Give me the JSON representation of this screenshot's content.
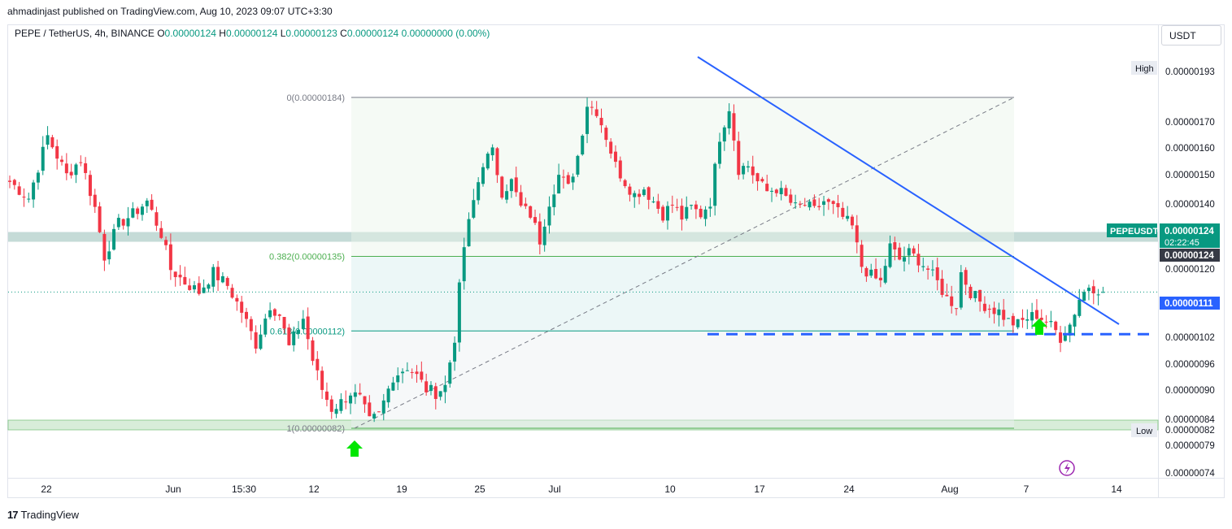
{
  "header": {
    "publisher": "ahmadinjast published on TradingView.com, Aug 10, 2023 09:07 UTC+3:30"
  },
  "legend": {
    "symbol": "PEPE / TetherUS, 4h, BINANCE",
    "o_label": "O",
    "o": "0.00000124",
    "h_label": "H",
    "h": "0.00000124",
    "l_label": "L",
    "l": "0.00000123",
    "c_label": "C",
    "c": "0.00000124",
    "change": "0.00000000 (0.00%)"
  },
  "currency_button": "USDT",
  "footer": {
    "brand": "TradingView",
    "icon": "tradingview-logo-icon"
  },
  "colors": {
    "up": "#089981",
    "down": "#f23645",
    "trendline": "#2962ff",
    "fib_zero_line": "#787b86",
    "fib_0382": "#4caf50",
    "fib_0618": "#089981",
    "zone_green": "#c8e6c9",
    "zone_gray": "#b2cfc9"
  },
  "chart_data": {
    "type": "candlestick",
    "symbol": "PEPEUSDT",
    "interval": "4h",
    "ylim": [
      7.3e-07,
      1.97e-06
    ],
    "y_ticks": [
      "0.00000193",
      "0.00000170",
      "0.00000160",
      "0.00000150",
      "0.00000140",
      "0.00000120",
      "0.00000102",
      "0.00000096",
      "0.00000090",
      "0.00000084",
      "0.00000082",
      "0.00000079",
      "0.00000074"
    ],
    "x_ticks": [
      "22",
      "Jun",
      "15:30",
      "12",
      "19",
      "25",
      "Jul",
      "10",
      "17",
      "24",
      "Aug",
      "7",
      "14"
    ],
    "price_labels": {
      "high": {
        "label": "High",
        "value": "0.00000193"
      },
      "low": {
        "label": "Low",
        "value": "0.00000082"
      },
      "current": {
        "label": "PEPEUSDT",
        "value": "0.00000124",
        "countdown": "02:22:45"
      },
      "last": "0.00000124",
      "support": "0.00000111"
    },
    "fib_levels": [
      {
        "label": "0(0.00000184)",
        "price": 1.84e-06
      },
      {
        "label": "0.382(0.00000135)",
        "price": 1.35e-06
      },
      {
        "label": "0.618(0.00000112)",
        "price": 1.12e-06
      },
      {
        "label": "1(0.00000082)",
        "price": 8.2e-07
      }
    ],
    "zones": [
      {
        "name": "resistance-zone",
        "low": 1.395e-06,
        "high": 1.425e-06
      },
      {
        "name": "support-zone",
        "low": 8.15e-07,
        "high": 8.45e-07
      }
    ],
    "support_level": 1.11e-06,
    "current_price": 1.24e-06,
    "close_path": [
      [
        0,
        1.58
      ],
      [
        4,
        1.53
      ],
      [
        8,
        1.72
      ],
      [
        12,
        1.6
      ],
      [
        15,
        1.65
      ],
      [
        18,
        1.5
      ],
      [
        20,
        1.35
      ],
      [
        23,
        1.45
      ],
      [
        26,
        1.48
      ],
      [
        29,
        1.52
      ],
      [
        32,
        1.42
      ],
      [
        34,
        1.31
      ],
      [
        37,
        1.27
      ],
      [
        40,
        1.24
      ],
      [
        43,
        1.3
      ],
      [
        46,
        1.26
      ],
      [
        49,
        1.18
      ],
      [
        52,
        1.08
      ],
      [
        55,
        1.2
      ],
      [
        57,
        1.17
      ],
      [
        59,
        1.07
      ],
      [
        62,
        1.16
      ],
      [
        64,
        1.03
      ],
      [
        66,
        0.94
      ],
      [
        68,
        0.88
      ],
      [
        70,
        0.9
      ],
      [
        72,
        0.93
      ],
      [
        74,
        0.91
      ],
      [
        76,
        0.84
      ],
      [
        78,
        0.86
      ],
      [
        81,
        0.98
      ],
      [
        84,
        1.01
      ],
      [
        86,
        0.98
      ],
      [
        88,
        0.94
      ],
      [
        90,
        0.93
      ],
      [
        92,
        0.95
      ],
      [
        94,
        1.1
      ],
      [
        95,
        1.25
      ],
      [
        96,
        1.38
      ],
      [
        98,
        1.52
      ],
      [
        100,
        1.64
      ],
      [
        102,
        1.67
      ],
      [
        104,
        1.55
      ],
      [
        106,
        1.58
      ],
      [
        108,
        1.5
      ],
      [
        110,
        1.48
      ],
      [
        112,
        1.4
      ],
      [
        114,
        1.52
      ],
      [
        116,
        1.6
      ],
      [
        118,
        1.56
      ],
      [
        120,
        1.66
      ],
      [
        122,
        1.82
      ],
      [
        124,
        1.8
      ],
      [
        126,
        1.72
      ],
      [
        128,
        1.63
      ],
      [
        130,
        1.58
      ],
      [
        132,
        1.54
      ],
      [
        134,
        1.56
      ],
      [
        136,
        1.52
      ],
      [
        138,
        1.48
      ],
      [
        140,
        1.51
      ],
      [
        142,
        1.47
      ],
      [
        144,
        1.5
      ],
      [
        146,
        1.48
      ],
      [
        148,
        1.52
      ],
      [
        150,
        1.72
      ],
      [
        152,
        1.81
      ],
      [
        154,
        1.62
      ],
      [
        156,
        1.63
      ],
      [
        158,
        1.58
      ],
      [
        160,
        1.55
      ],
      [
        162,
        1.56
      ],
      [
        164,
        1.53
      ],
      [
        166,
        1.5
      ],
      [
        168,
        1.51
      ],
      [
        170,
        1.49
      ],
      [
        172,
        1.52
      ],
      [
        174,
        1.5
      ],
      [
        176,
        1.47
      ],
      [
        178,
        1.44
      ],
      [
        180,
        1.32
      ],
      [
        182,
        1.29
      ],
      [
        184,
        1.27
      ],
      [
        186,
        1.38
      ],
      [
        188,
        1.34
      ],
      [
        190,
        1.36
      ],
      [
        192,
        1.34
      ],
      [
        194,
        1.31
      ],
      [
        196,
        1.27
      ],
      [
        198,
        1.22
      ],
      [
        200,
        1.2
      ],
      [
        201,
        1.3
      ],
      [
        203,
        1.24
      ],
      [
        205,
        1.21
      ],
      [
        207,
        1.19
      ],
      [
        209,
        1.18
      ],
      [
        211,
        1.15
      ],
      [
        213,
        1.14
      ],
      [
        215,
        1.16
      ],
      [
        217,
        1.17
      ],
      [
        219,
        1.15
      ],
      [
        221,
        1.12
      ],
      [
        222,
        1.1
      ],
      [
        224,
        1.14
      ],
      [
        226,
        1.22
      ],
      [
        228,
        1.26
      ],
      [
        230,
        1.25
      ],
      [
        231,
        1.24
      ]
    ],
    "note_x_range": [
      0,
      250
    ]
  }
}
